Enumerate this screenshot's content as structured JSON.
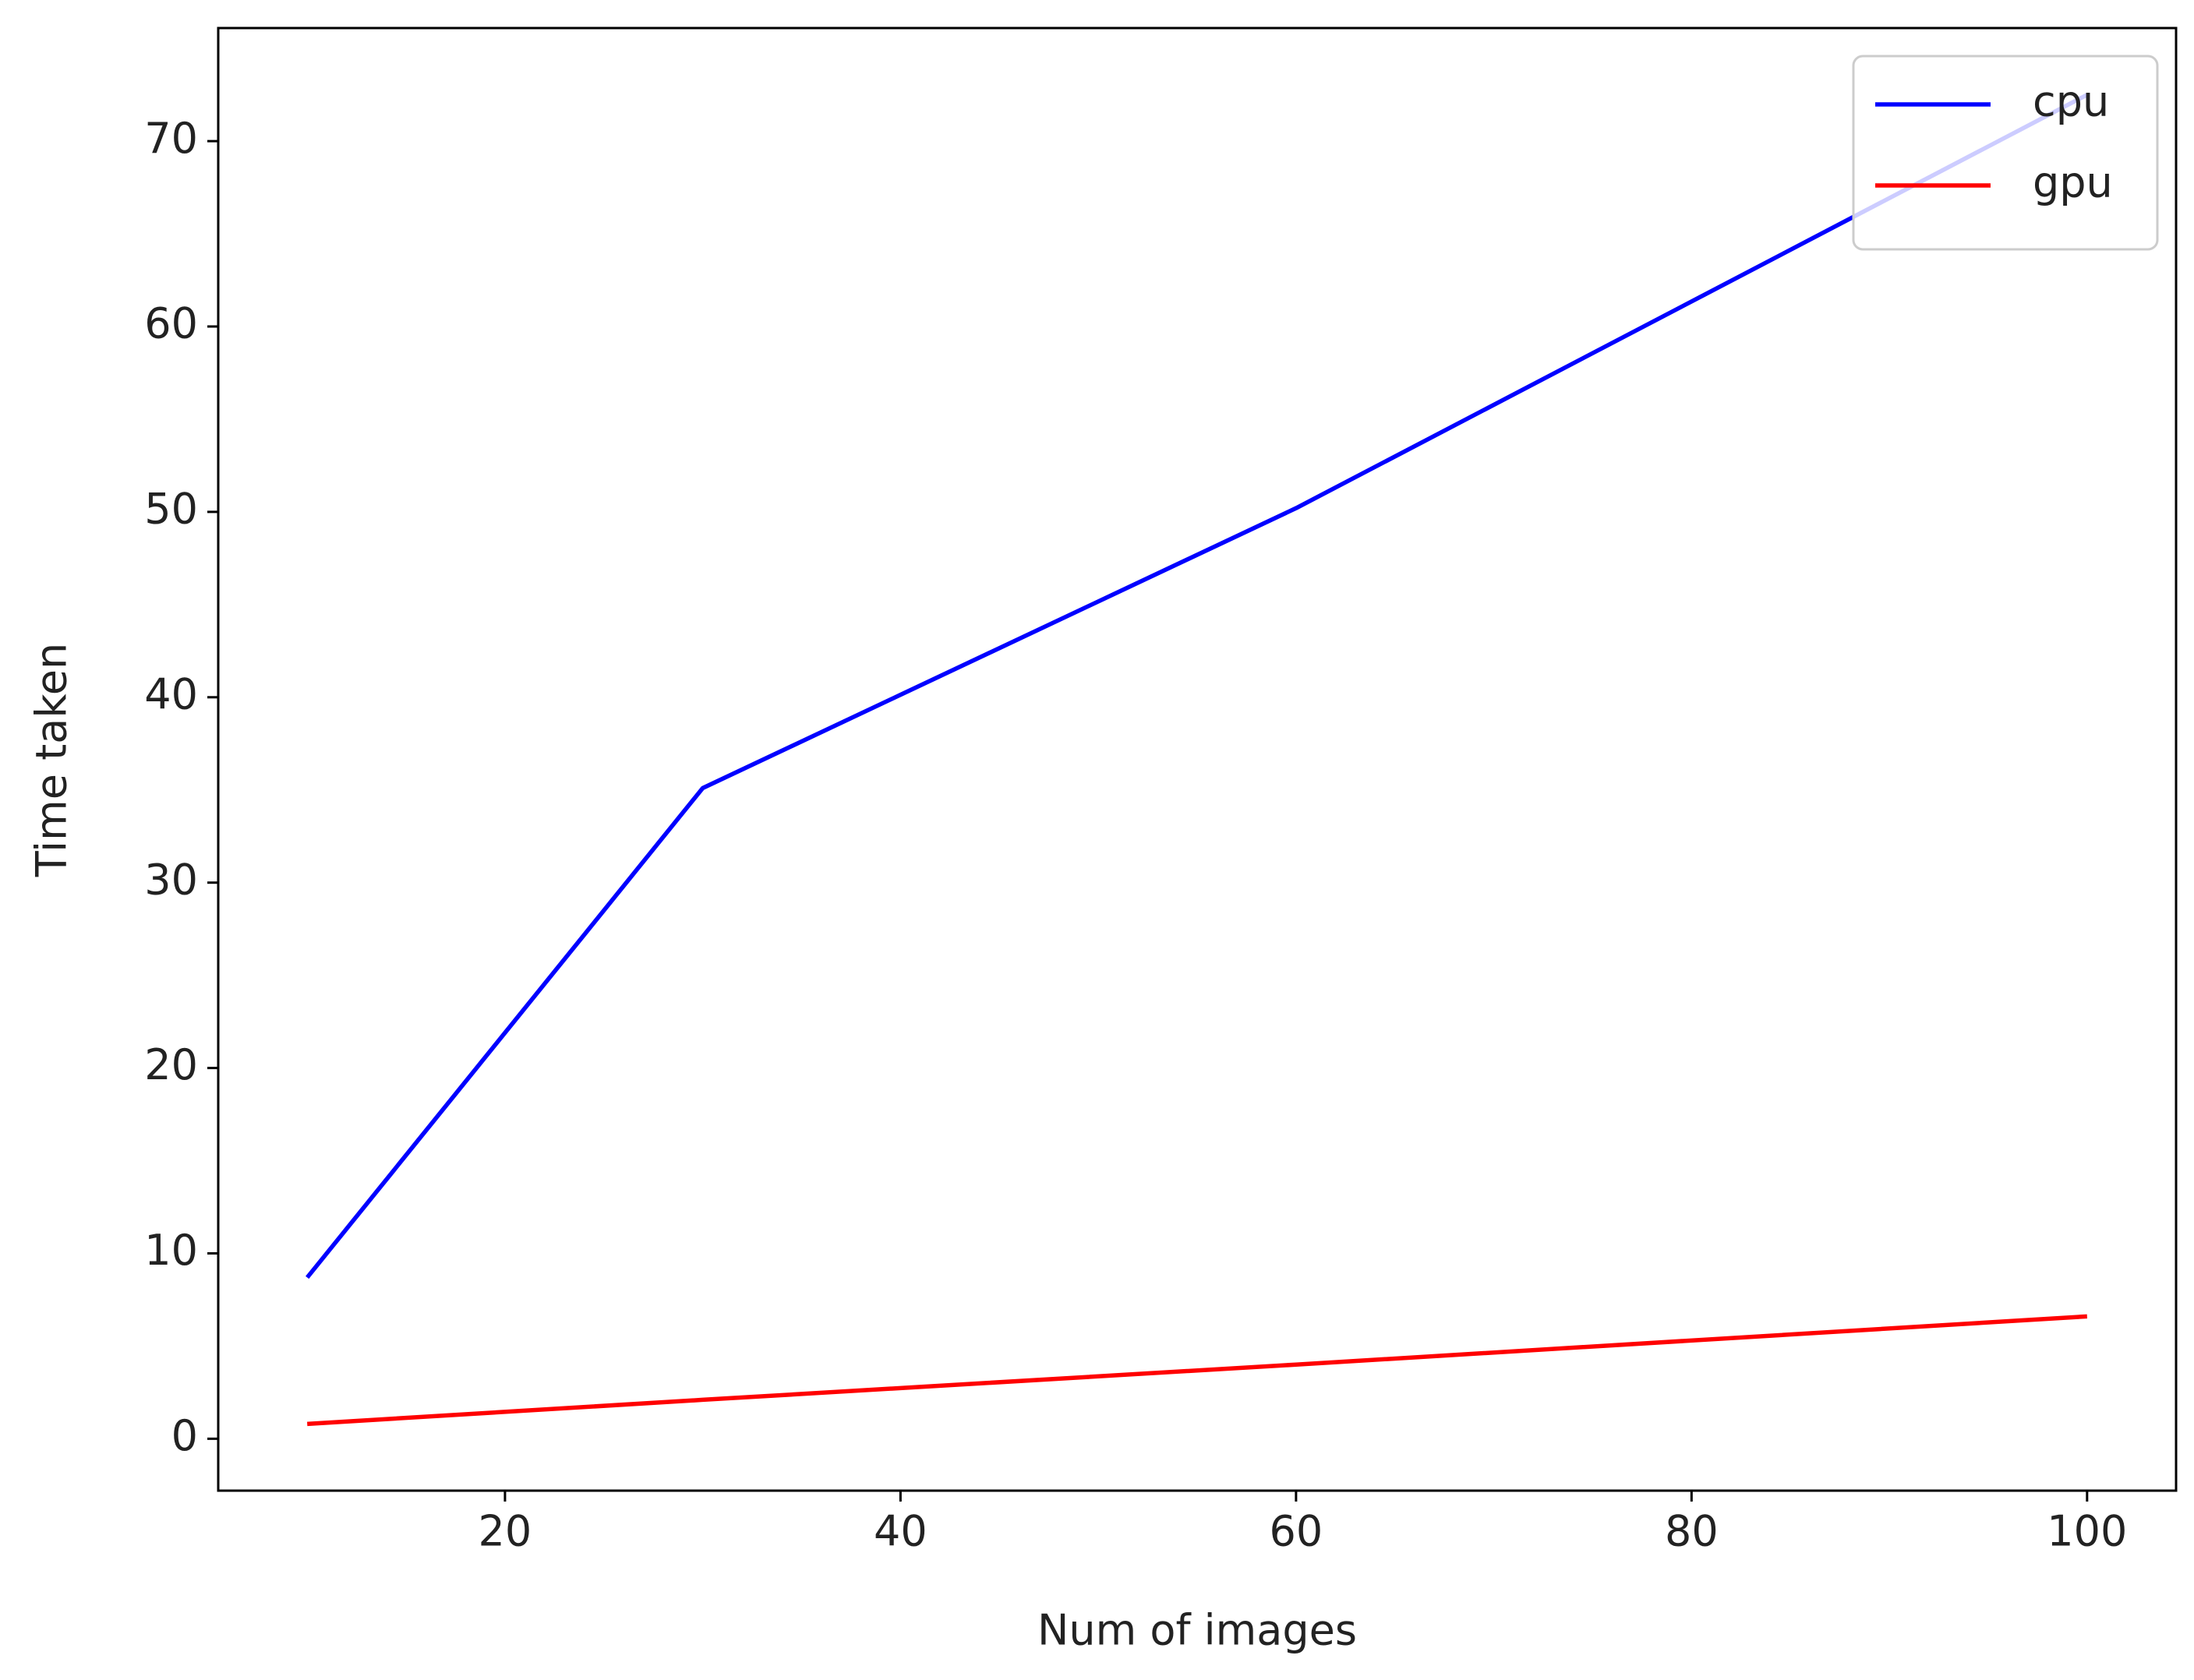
{
  "chart_data": {
    "type": "line",
    "xlabel": "Num of images",
    "ylabel": "Time taken",
    "x": [
      10,
      30,
      60,
      100
    ],
    "series": [
      {
        "name": "cpu",
        "color": "#0000ff",
        "values": [
          8.7,
          35.1,
          50.2,
          72.5
        ]
      },
      {
        "name": "gpu",
        "color": "#ff0000",
        "values": [
          0.8,
          2.1,
          4.0,
          6.6
        ]
      }
    ],
    "xlim": [
      5.5,
      104.5
    ],
    "xticks": [
      20,
      40,
      60,
      80,
      100
    ],
    "ylim": [
      -2.8,
      76.1
    ],
    "yticks": [
      0,
      10,
      20,
      30,
      40,
      50,
      60,
      70
    ],
    "grid": false,
    "legend": "upper right"
  }
}
